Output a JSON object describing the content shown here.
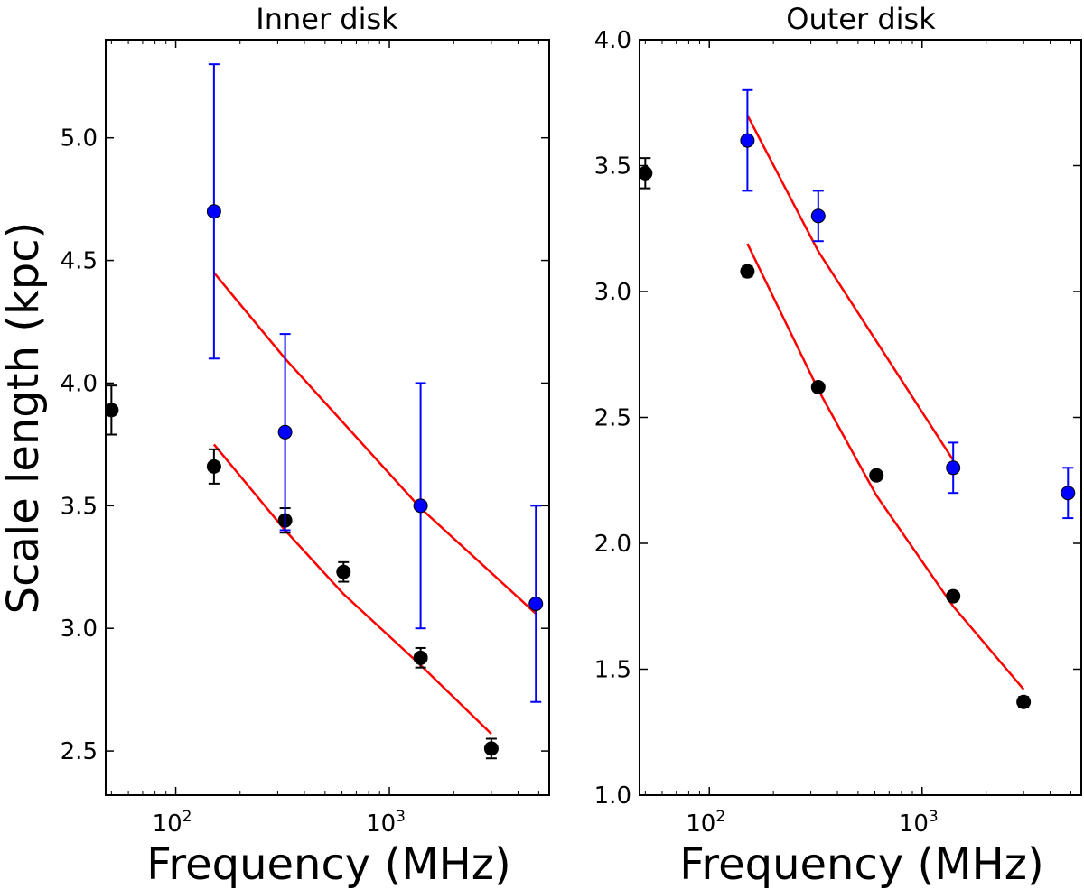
{
  "figure": {
    "ylabel": "Scale length (kpc)"
  },
  "chart_data": [
    {
      "type": "scatter",
      "title": "Inner disk",
      "xlabel": "Frequency (MHz)",
      "ylabel": "Scale length (kpc)",
      "xscale": "log",
      "xlim": [
        47,
        5600
      ],
      "ylim": [
        2.32,
        5.4
      ],
      "x_ticks": [
        {
          "base": "10",
          "exp": "2",
          "value": 100
        },
        {
          "base": "10",
          "exp": "3",
          "value": 1000
        }
      ],
      "y_ticks": [
        "2.5",
        "3.0",
        "3.5",
        "4.0",
        "4.5",
        "5.0"
      ],
      "y_tick_values": [
        2.5,
        3.0,
        3.5,
        4.0,
        4.5,
        5.0
      ],
      "series": [
        {
          "name": "black points",
          "color": "#000000",
          "x": [
            50,
            151,
            325,
            610,
            1400,
            3000
          ],
          "y": [
            3.89,
            3.66,
            3.44,
            3.23,
            2.88,
            2.51
          ],
          "yerr": [
            0.1,
            0.07,
            0.05,
            0.04,
            0.04,
            0.04
          ]
        },
        {
          "name": "blue points",
          "color": "#0000ff",
          "x": [
            151,
            325,
            1400,
            4850
          ],
          "y": [
            4.7,
            3.8,
            3.5,
            3.1
          ],
          "yerr": [
            0.6,
            0.4,
            0.5,
            0.4
          ]
        }
      ],
      "fit_lines": [
        {
          "name": "black fit",
          "color": "#ff0000",
          "x": [
            151,
            325,
            610,
            1400,
            3000
          ],
          "y": [
            3.75,
            3.4,
            3.14,
            2.85,
            2.57
          ]
        },
        {
          "name": "blue fit",
          "color": "#ff0000",
          "x": [
            151,
            325,
            1400,
            4850
          ],
          "y": [
            4.45,
            4.1,
            3.49,
            3.06
          ]
        }
      ]
    },
    {
      "type": "scatter",
      "title": "Outer disk",
      "xlabel": "Frequency (MHz)",
      "ylabel": "Scale length (kpc)",
      "xscale": "log",
      "xlim": [
        47,
        5600
      ],
      "ylim": [
        1.0,
        4.0
      ],
      "x_ticks": [
        {
          "base": "10",
          "exp": "2",
          "value": 100
        },
        {
          "base": "10",
          "exp": "3",
          "value": 1000
        }
      ],
      "y_ticks": [
        "1.0",
        "1.5",
        "2.0",
        "2.5",
        "3.0",
        "3.5",
        "4.0"
      ],
      "y_tick_values": [
        1.0,
        1.5,
        2.0,
        2.5,
        3.0,
        3.5,
        4.0
      ],
      "series": [
        {
          "name": "black points",
          "color": "#000000",
          "x": [
            50,
            151,
            325,
            610,
            1400,
            3000
          ],
          "y": [
            3.47,
            3.08,
            2.62,
            2.27,
            1.79,
            1.37
          ],
          "yerr": [
            0.06,
            0.02,
            0.01,
            0.01,
            0.01,
            0.02
          ]
        },
        {
          "name": "blue points",
          "color": "#0000ff",
          "x": [
            151,
            325,
            1400,
            4850
          ],
          "y": [
            3.6,
            3.3,
            2.3,
            2.2
          ],
          "yerr": [
            0.2,
            0.1,
            0.1,
            0.1
          ]
        }
      ],
      "fit_lines": [
        {
          "name": "black fit",
          "color": "#ff0000",
          "x": [
            151,
            325,
            610,
            1400,
            3000
          ],
          "y": [
            3.19,
            2.61,
            2.19,
            1.75,
            1.42
          ]
        },
        {
          "name": "blue fit",
          "color": "#ff0000",
          "x": [
            151,
            325,
            1400
          ],
          "y": [
            3.7,
            3.16,
            2.33
          ]
        }
      ]
    }
  ]
}
